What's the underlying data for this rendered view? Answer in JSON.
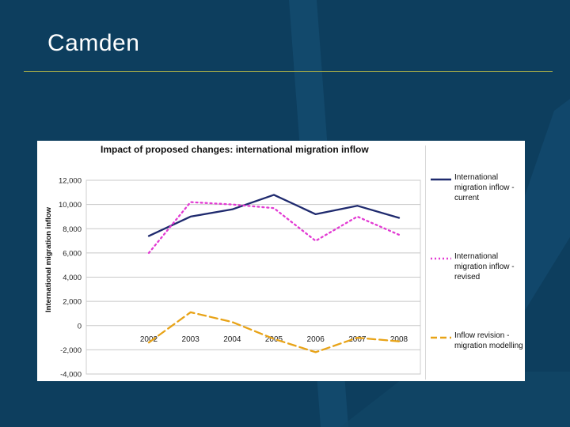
{
  "slide": {
    "title": "Camden",
    "background_color": "#0d3e5e",
    "rule_color": "#9aa34a"
  },
  "chart_data": {
    "type": "line",
    "title": "Impact of proposed changes: international migration inflow",
    "xlabel": "",
    "ylabel": "International migration inflow",
    "categories": [
      "2002",
      "2003",
      "2004",
      "2005",
      "2006",
      "2007",
      "2008"
    ],
    "ylim": [
      -4000,
      12000
    ],
    "yticks": [
      12000,
      10000,
      8000,
      6000,
      4000,
      2000,
      0,
      -2000,
      -4000
    ],
    "ytick_labels": [
      "12,000",
      "10,000",
      "8,000",
      "6,000",
      "4,000",
      "2,000",
      "0",
      "-2,000",
      "-4,000"
    ],
    "grid": true,
    "legend_position": "right",
    "series": [
      {
        "name": "International migration inflow - current",
        "values": [
          7400,
          9000,
          9600,
          10800,
          9200,
          9900,
          8900
        ],
        "color": "#1f2a6e",
        "style": "solid"
      },
      {
        "name": "International migration inflow - revised",
        "values": [
          6000,
          10200,
          10000,
          9700,
          7000,
          9000,
          7500
        ],
        "color": "#e23ad3",
        "style": "dotted"
      },
      {
        "name": "Inflow revision - migration modelling",
        "values": [
          -1400,
          1100,
          300,
          -1100,
          -2200,
          -1000,
          -1300
        ],
        "color": "#e8a317",
        "style": "dashed"
      }
    ]
  }
}
